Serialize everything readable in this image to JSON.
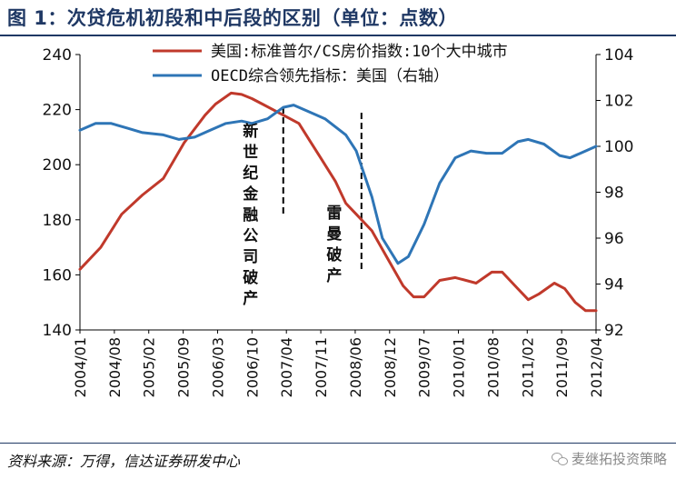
{
  "title": "图 1：次贷危机初段和中后段的区别（单位：点数）",
  "source": "资料来源：万得，信达证券研发中心",
  "watermark": "麦继拓投资策略",
  "colors": {
    "series_left": "#c0392b",
    "series_right": "#2e75b6",
    "accent": "#1f3864"
  },
  "chart_data": {
    "type": "line",
    "x_tick_labels": [
      "2004/01",
      "2004/08",
      "2005/02",
      "2005/09",
      "2006/03",
      "2006/10",
      "2007/04",
      "2007/11",
      "2008/06",
      "2008/12",
      "2009/07",
      "2010/01",
      "2010/08",
      "2011/02",
      "2011/09",
      "2012/04"
    ],
    "x_range": [
      "2004-01",
      "2012-04"
    ],
    "y_left": {
      "range": [
        140,
        240
      ],
      "ticks": [
        140,
        160,
        180,
        200,
        220,
        240
      ]
    },
    "y_right": {
      "range": [
        92,
        104
      ],
      "ticks": [
        92,
        94,
        96,
        98,
        100,
        102,
        104
      ]
    },
    "legend_placement": "top-right",
    "series": [
      {
        "name": "美国:标准普尔/CS房价指数:10个大中城市",
        "axis": "left",
        "color": "#c0392b",
        "points": [
          [
            "2004-01",
            162
          ],
          [
            "2004-05",
            170
          ],
          [
            "2004-09",
            182
          ],
          [
            "2005-01",
            189
          ],
          [
            "2005-05",
            195
          ],
          [
            "2005-09",
            208
          ],
          [
            "2006-01",
            218
          ],
          [
            "2006-03",
            222
          ],
          [
            "2006-06",
            226
          ],
          [
            "2006-08",
            225.5
          ],
          [
            "2006-10",
            224
          ],
          [
            "2006-12",
            222
          ],
          [
            "2007-02",
            220
          ],
          [
            "2007-04",
            218
          ],
          [
            "2007-07",
            215
          ],
          [
            "2007-09",
            209
          ],
          [
            "2007-11",
            203
          ],
          [
            "2008-02",
            194
          ],
          [
            "2008-04",
            186
          ],
          [
            "2008-06",
            182
          ],
          [
            "2008-09",
            176
          ],
          [
            "2008-12",
            166
          ],
          [
            "2009-03",
            156
          ],
          [
            "2009-05",
            152
          ],
          [
            "2009-07",
            152
          ],
          [
            "2009-10",
            158
          ],
          [
            "2010-01",
            159
          ],
          [
            "2010-05",
            157
          ],
          [
            "2010-08",
            161
          ],
          [
            "2010-10",
            161
          ],
          [
            "2011-01",
            155
          ],
          [
            "2011-03",
            151
          ],
          [
            "2011-05",
            153
          ],
          [
            "2011-08",
            157
          ],
          [
            "2011-10",
            155
          ],
          [
            "2011-12",
            150
          ],
          [
            "2012-02",
            147
          ],
          [
            "2012-04",
            147
          ]
        ]
      },
      {
        "name": "OECD综合领先指标：美国（右轴）",
        "axis": "right",
        "color": "#2e75b6",
        "points": [
          [
            "2004-01",
            100.7
          ],
          [
            "2004-04",
            101.0
          ],
          [
            "2004-07",
            101.0
          ],
          [
            "2004-10",
            100.8
          ],
          [
            "2005-01",
            100.6
          ],
          [
            "2005-05",
            100.5
          ],
          [
            "2005-08",
            100.3
          ],
          [
            "2005-11",
            100.4
          ],
          [
            "2006-02",
            100.7
          ],
          [
            "2006-05",
            101.0
          ],
          [
            "2006-08",
            101.1
          ],
          [
            "2006-10",
            101.0
          ],
          [
            "2007-01",
            101.2
          ],
          [
            "2007-04",
            101.7
          ],
          [
            "2007-06",
            101.8
          ],
          [
            "2007-09",
            101.5
          ],
          [
            "2007-12",
            101.2
          ],
          [
            "2008-04",
            100.5
          ],
          [
            "2008-06",
            99.8
          ],
          [
            "2008-09",
            97.8
          ],
          [
            "2008-11",
            96.0
          ],
          [
            "2009-02",
            94.9
          ],
          [
            "2009-04",
            95.2
          ],
          [
            "2009-07",
            96.6
          ],
          [
            "2009-10",
            98.4
          ],
          [
            "2010-01",
            99.5
          ],
          [
            "2010-04",
            99.8
          ],
          [
            "2010-07",
            99.7
          ],
          [
            "2010-10",
            99.7
          ],
          [
            "2011-01",
            100.2
          ],
          [
            "2011-03",
            100.3
          ],
          [
            "2011-06",
            100.1
          ],
          [
            "2011-09",
            99.6
          ],
          [
            "2011-11",
            99.5
          ],
          [
            "2012-01",
            99.7
          ],
          [
            "2012-04",
            100.0
          ]
        ]
      }
    ],
    "annotations": [
      {
        "text": "新世纪金融公司破产",
        "x": "2007-04"
      },
      {
        "text": "雷曼破产",
        "x": "2008-07"
      }
    ]
  }
}
